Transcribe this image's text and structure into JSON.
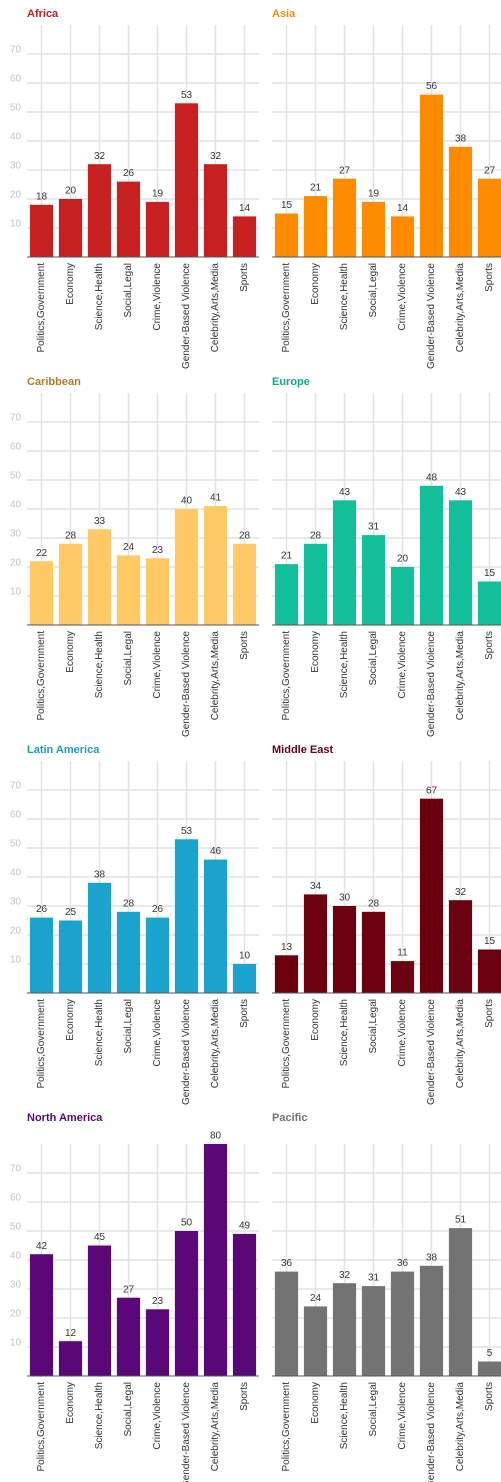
{
  "chart_data": [
    {
      "type": "bar",
      "title": "Africa",
      "title_color": "#c62020",
      "color": "#c62020",
      "categories": [
        "Politics,Government",
        "Economy",
        "Science,Health",
        "Social,Legal",
        "Crime,Violence",
        "Gender-Based Violence",
        "Celebrity,Arts,Media",
        "Sports"
      ],
      "values": [
        18,
        20,
        32,
        26,
        19,
        53,
        32,
        14
      ],
      "ylim": [
        0,
        80
      ],
      "yticks": [
        10,
        20,
        30,
        40,
        50,
        60,
        70
      ],
      "grid": true
    },
    {
      "type": "bar",
      "title": "Asia",
      "title_color": "#f58a0a",
      "color": "#ff8c00",
      "categories": [
        "Politics,Government",
        "Economy",
        "Science,Health",
        "Social,Legal",
        "Crime,Violence",
        "Gender-Based Violence",
        "Celebrity,Arts,Media",
        "Sports"
      ],
      "values": [
        15,
        21,
        27,
        19,
        14,
        56,
        38,
        27
      ],
      "ylim": [
        0,
        80
      ],
      "yticks": [
        10,
        20,
        30,
        40,
        50,
        60,
        70
      ],
      "grid": true
    },
    {
      "type": "bar",
      "title": "Caribbean",
      "title_color": "#b07a2a",
      "color": "#ffc966",
      "categories": [
        "Politics,Government",
        "Economy",
        "Science,Health",
        "Social,Legal",
        "Crime,Violence",
        "Gender-Based Violence",
        "Celebrity,Arts,Media",
        "Sports"
      ],
      "values": [
        22,
        28,
        33,
        24,
        23,
        40,
        41,
        28
      ],
      "ylim": [
        0,
        80
      ],
      "yticks": [
        10,
        20,
        30,
        40,
        50,
        60,
        70
      ],
      "grid": true
    },
    {
      "type": "bar",
      "title": "Europe",
      "title_color": "#13a988",
      "color": "#13bf9a",
      "categories": [
        "Politics,Government",
        "Economy",
        "Science,Health",
        "Social,Legal",
        "Crime,Violence",
        "Gender-Based Violence",
        "Celebrity,Arts,Media",
        "Sports"
      ],
      "values": [
        21,
        28,
        43,
        31,
        20,
        48,
        43,
        15
      ],
      "ylim": [
        0,
        80
      ],
      "yticks": [
        10,
        20,
        30,
        40,
        50,
        60,
        70
      ],
      "grid": true
    },
    {
      "type": "bar",
      "title": "Latin America",
      "title_color": "#1a9cc4",
      "color": "#1aa3cc",
      "categories": [
        "Politics,Government",
        "Economy",
        "Science,Health",
        "Social,Legal",
        "Crime,Violence",
        "Gender-Based Violence",
        "Celebrity,Arts,Media",
        "Sports"
      ],
      "values": [
        26,
        25,
        38,
        28,
        26,
        53,
        46,
        10
      ],
      "ylim": [
        0,
        80
      ],
      "yticks": [
        10,
        20,
        30,
        40,
        50,
        60,
        70
      ],
      "grid": true
    },
    {
      "type": "bar",
      "title": "Middle East",
      "title_color": "#6b0010",
      "color": "#6b0010",
      "categories": [
        "Politics,Government",
        "Economy",
        "Science,Health",
        "Social,Legal",
        "Crime,Violence",
        "Gender-Based Violence",
        "Celebrity,Arts,Media",
        "Sports"
      ],
      "values": [
        13,
        34,
        30,
        28,
        11,
        67,
        32,
        15
      ],
      "ylim": [
        0,
        80
      ],
      "yticks": [
        10,
        20,
        30,
        40,
        50,
        60,
        70
      ],
      "grid": true
    },
    {
      "type": "bar",
      "title": "North America",
      "title_color": "#5a0878",
      "color": "#5a0878",
      "categories": [
        "Politics,Government",
        "Economy",
        "Science,Health",
        "Social,Legal",
        "Crime,Violence",
        "Gender-Based Violence",
        "Celebrity,Arts,Media",
        "Sports"
      ],
      "values": [
        42,
        12,
        45,
        27,
        23,
        50,
        80,
        49
      ],
      "ylim": [
        0,
        80
      ],
      "yticks": [
        10,
        20,
        30,
        40,
        50,
        60,
        70
      ],
      "grid": true
    },
    {
      "type": "bar",
      "title": "Pacific",
      "title_color": "#737373",
      "color": "#737373",
      "categories": [
        "Politics,Government",
        "Economy",
        "Science,Health",
        "Social,Legal",
        "Crime,Violence",
        "Gender-Based Violence",
        "Celebrity,Arts,Media",
        "Sports"
      ],
      "values": [
        36,
        24,
        32,
        31,
        36,
        38,
        51,
        5
      ],
      "ylim": [
        0,
        80
      ],
      "yticks": [
        10,
        20,
        30,
        40,
        50,
        60,
        70
      ],
      "grid": true
    }
  ]
}
